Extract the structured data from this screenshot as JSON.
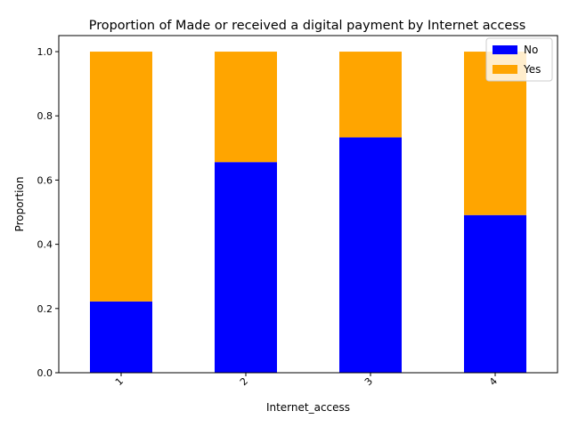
{
  "chart_data": {
    "type": "bar",
    "stacked": true,
    "title": "Proportion of Made or received a digital payment by Internet access",
    "xlabel": "Internet_access",
    "ylabel": "Proportion",
    "categories": [
      "1",
      "2",
      "3",
      "4"
    ],
    "series": [
      {
        "name": "No",
        "color": "#0000ff",
        "values": [
          0.222,
          0.656,
          0.733,
          0.491
        ]
      },
      {
        "name": "Yes",
        "color": "#ffa500",
        "values": [
          0.778,
          0.344,
          0.267,
          0.509
        ]
      }
    ],
    "ylim": [
      0,
      1.05
    ],
    "yticks": [
      "0.0",
      "0.2",
      "0.4",
      "0.6",
      "0.8",
      "1.0"
    ],
    "grid": false,
    "legend_position": "top-right"
  }
}
